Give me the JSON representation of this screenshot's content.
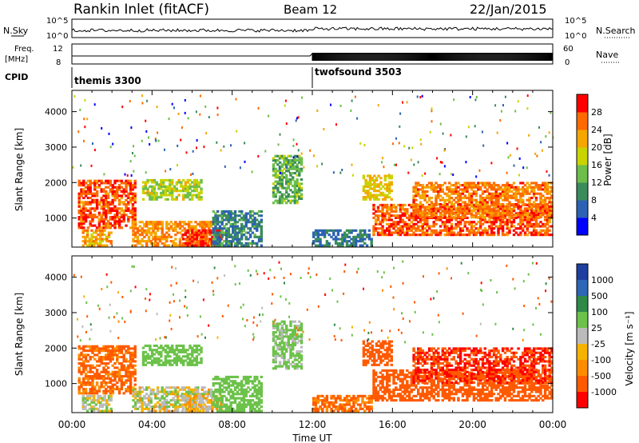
{
  "header": {
    "station": "Rankin Inlet (fitACF)",
    "beam": "Beam 12",
    "date": "22/Jan/2015"
  },
  "status_panels": {
    "nsky_label": "N.Sky",
    "nsearch_label": "N.Search",
    "noise_ticks": [
      "10^5",
      "10^0"
    ],
    "noise_ticks_right": [
      "10^5",
      "10^0"
    ],
    "freq_label": "Freq.",
    "freq_unit": "[MHz]",
    "freq_ticks": [
      "12",
      "8"
    ],
    "nave_label": "Nave",
    "nave_ticks": [
      "60",
      "0"
    ],
    "cpid_label": "CPID",
    "cpid_segments": [
      {
        "name": "themis 3300",
        "start_hour": 0,
        "end_hour": 12
      },
      {
        "name": "twofsound 3503",
        "start_hour": 12,
        "end_hour": 24
      }
    ]
  },
  "colors": {
    "power_scale": [
      "#0000ff",
      "#2c62b4",
      "#3a8c5a",
      "#6dbe4a",
      "#c8d400",
      "#f5a600",
      "#ff6a00",
      "#ff0000"
    ],
    "velocity_scale": [
      "#1f3fa0",
      "#2e66b8",
      "#2f8a4a",
      "#6cc24a",
      "#bbbbbb",
      "#f5b300",
      "#ff8c00",
      "#ff5a00",
      "#ff0000"
    ]
  },
  "chart_data": [
    {
      "type": "heatmap",
      "panel": "power",
      "ylabel": "Slant Range [km]",
      "ylim": [
        180,
        4600
      ],
      "yticks": [
        1000,
        2000,
        3000,
        4000
      ],
      "xlim": [
        0,
        24
      ],
      "colorbar": {
        "label": "Power [dB]",
        "ticks": [
          4,
          8,
          12,
          16,
          20,
          24,
          28
        ],
        "range": [
          0,
          32
        ]
      },
      "regions": [
        {
          "t0": 0.3,
          "t1": 3.2,
          "r0": 700,
          "r1": 2100,
          "value": 27
        },
        {
          "t0": 0.5,
          "t1": 2.0,
          "r0": 200,
          "r1": 700,
          "value": 22
        },
        {
          "t0": 3.0,
          "t1": 7.0,
          "r0": 200,
          "r1": 900,
          "value": 24
        },
        {
          "t0": 3.5,
          "t1": 6.5,
          "r0": 1500,
          "r1": 2100,
          "value": 17
        },
        {
          "t0": 5.5,
          "t1": 7.5,
          "r0": 200,
          "r1": 700,
          "value": 29
        },
        {
          "t0": 7.0,
          "t1": 9.5,
          "r0": 200,
          "r1": 1200,
          "value": 9
        },
        {
          "t0": 10.0,
          "t1": 11.5,
          "r0": 1400,
          "r1": 2800,
          "value": 13
        },
        {
          "t0": 12.0,
          "t1": 15.0,
          "r0": 200,
          "r1": 700,
          "value": 8
        },
        {
          "t0": 14.5,
          "t1": 16.0,
          "r0": 1500,
          "r1": 2200,
          "value": 20
        },
        {
          "t0": 15.0,
          "t1": 24.0,
          "r0": 500,
          "r1": 1400,
          "value": 27
        },
        {
          "t0": 17.0,
          "t1": 24.0,
          "r0": 1000,
          "r1": 2000,
          "value": 25
        }
      ]
    },
    {
      "type": "heatmap",
      "panel": "velocity",
      "ylabel": "Slant Range [km]",
      "ylim": [
        180,
        4600
      ],
      "yticks": [
        1000,
        2000,
        3000,
        4000
      ],
      "xlabel": "Time UT",
      "xticks": [
        "00:00",
        "04:00",
        "08:00",
        "12:00",
        "16:00",
        "20:00",
        "00:00"
      ],
      "xlim": [
        0,
        24
      ],
      "colorbar": {
        "label": "Velocity [m s⁻¹]",
        "ticks": [
          "1000",
          "500",
          "100",
          "25",
          "-25",
          "-100",
          "-500",
          "-1000"
        ],
        "range": [
          -1000,
          1000
        ]
      },
      "regions": [
        {
          "t0": 0.3,
          "t1": 3.2,
          "r0": 700,
          "r1": 2100,
          "value": -150
        },
        {
          "t0": 0.5,
          "t1": 2.0,
          "r0": 200,
          "r1": 700,
          "value": 80
        },
        {
          "t0": 3.0,
          "t1": 7.0,
          "r0": 200,
          "r1": 900,
          "value": 60
        },
        {
          "t0": 3.5,
          "t1": 6.5,
          "r0": 1500,
          "r1": 2100,
          "value": 200
        },
        {
          "t0": 5.5,
          "t1": 7.5,
          "r0": 200,
          "r1": 700,
          "value": 0
        },
        {
          "t0": 7.0,
          "t1": 9.5,
          "r0": 200,
          "r1": 1200,
          "value": 300
        },
        {
          "t0": 10.0,
          "t1": 11.5,
          "r0": 1400,
          "r1": 2800,
          "value": 150
        },
        {
          "t0": 12.0,
          "t1": 15.0,
          "r0": 200,
          "r1": 700,
          "value": -120
        },
        {
          "t0": 14.5,
          "t1": 16.0,
          "r0": 1500,
          "r1": 2200,
          "value": -200
        },
        {
          "t0": 15.0,
          "t1": 24.0,
          "r0": 500,
          "r1": 1400,
          "value": -300
        },
        {
          "t0": 17.0,
          "t1": 24.0,
          "r0": 1000,
          "r1": 2000,
          "value": -500
        }
      ]
    }
  ]
}
